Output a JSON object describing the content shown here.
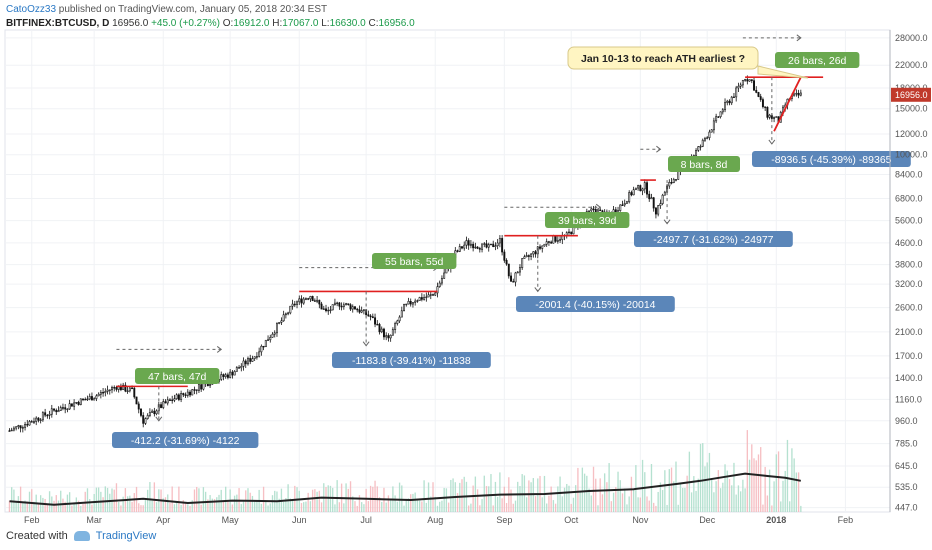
{
  "header": {
    "author": "CatoOzz33",
    "published": " published on TradingView.com, January 05, 2018 20:34 EST",
    "symbol": "BITFINEX:BTCUSD, D",
    "last": "16956.0",
    "change": "+45.0 (+0.27%)",
    "o_label": "O:",
    "o": "16912.0",
    "h_label": "H:",
    "h": "17067.0",
    "l_label": "L:",
    "l": "16630.0",
    "c_label": "C:",
    "c": "16956.0"
  },
  "footer": {
    "created_with": "Created with",
    "brand": "TradingView"
  },
  "chart_data": {
    "type": "line",
    "yscale": "log",
    "yticks": [
      "28000.0",
      "22000.0",
      "18000.0",
      "15000.0",
      "12000.0",
      "10000.0",
      "8400.0",
      "6800.0",
      "5600.0",
      "4600.0",
      "3800.0",
      "3200.0",
      "2600.0",
      "2100.0",
      "1700.0",
      "1400.0",
      "1160.0",
      "960.0",
      "785.0",
      "645.0",
      "535.0",
      "447.0"
    ],
    "ytick_values": [
      28000,
      22000,
      18000,
      15000,
      12000,
      10000,
      8400,
      6800,
      5600,
      4600,
      3800,
      3200,
      2600,
      2100,
      1700,
      1400,
      1160,
      960,
      785,
      645,
      535,
      447
    ],
    "xticks": [
      "Feb",
      "Mar",
      "Apr",
      "May",
      "Jun",
      "Jul",
      "Aug",
      "Sep",
      "Oct",
      "Nov",
      "Dec",
      "2018",
      "Feb"
    ],
    "xtick_days": [
      0,
      28,
      59,
      89,
      120,
      150,
      181,
      212,
      242,
      273,
      303,
      334,
      365
    ],
    "price_label": "16956.0",
    "series": [
      {
        "x": [
          -10,
          0,
          10,
          20,
          28,
          38,
          45,
          50,
          57,
          63,
          70,
          80,
          89,
          100,
          110,
          118,
          125,
          132,
          138,
          145,
          152,
          160,
          167,
          172,
          180,
          185,
          190,
          195,
          205,
          210,
          215,
          220,
          225,
          232,
          240,
          248,
          252,
          258,
          265,
          270,
          275,
          280,
          285,
          290,
          300,
          310,
          315,
          320,
          323,
          325,
          330,
          335,
          338,
          340,
          345
        ],
        "values": [
          880,
          960,
          1050,
          1130,
          1190,
          1300,
          1250,
          960,
          1080,
          1160,
          1230,
          1360,
          1450,
          1700,
          2200,
          2700,
          2900,
          2500,
          2700,
          2600,
          2400,
          1950,
          2600,
          2800,
          2900,
          3500,
          4200,
          4600,
          4400,
          4700,
          3200,
          3900,
          4200,
          4700,
          4900,
          5800,
          6200,
          5800,
          6500,
          7300,
          7600,
          6100,
          7500,
          8500,
          10800,
          15000,
          17000,
          19800,
          19100,
          17200,
          14200,
          13500,
          15500,
          16500,
          16956
        ]
      }
    ],
    "volume_ma": {
      "x": [
        -10,
        10,
        30,
        50,
        70,
        90,
        110,
        130,
        150,
        170,
        190,
        210,
        230,
        250,
        270,
        290,
        300,
        310,
        320,
        330,
        338,
        345
      ],
      "values": [
        0.18,
        0.12,
        0.17,
        0.22,
        0.15,
        0.19,
        0.18,
        0.24,
        0.22,
        0.2,
        0.25,
        0.29,
        0.3,
        0.35,
        0.38,
        0.47,
        0.52,
        0.58,
        0.64,
        0.6,
        0.57,
        0.52
      ]
    },
    "annotations": [
      {
        "text": "47 bars, 47d",
        "kind": "bars"
      },
      {
        "text": "-412.2 (-31.69%) -4122",
        "kind": "drop"
      },
      {
        "text": "55 bars, 55d",
        "kind": "bars"
      },
      {
        "text": "-1183.8 (-39.41%) -11838",
        "kind": "drop"
      },
      {
        "text": "39 bars, 39d",
        "kind": "bars"
      },
      {
        "text": "-2001.4 (-40.15%) -20014",
        "kind": "drop"
      },
      {
        "text": "8 bars, 8d",
        "kind": "bars"
      },
      {
        "text": "-2497.7 (-31.62%) -24977",
        "kind": "drop"
      },
      {
        "text": "26 bars, 26d",
        "kind": "bars"
      },
      {
        "text": "-8936.5 (-45.39%) -89365",
        "kind": "drop"
      }
    ],
    "callout": "Jan 10-13 to reach ATH earliest ?",
    "colors": {
      "up": "#26a69a",
      "down": "#ef5350",
      "bars_label": "#6aa84f",
      "drop_label": "#5b86b9",
      "resistance": "#e02020",
      "price_label_bg": "#c0392b",
      "ma": "#222222"
    }
  }
}
